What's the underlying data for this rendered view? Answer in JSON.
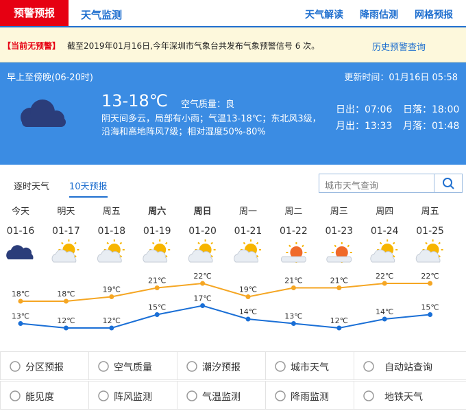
{
  "nav": {
    "tabs": [
      "预警预报",
      "天气监测"
    ],
    "links": [
      "天气解读",
      "降雨估测",
      "网格预报"
    ]
  },
  "alert": {
    "status": "【当前无预警】",
    "message": "截至2019年01月16日,今年深圳市气象台共发布气象预警信号 6 次。",
    "link": "历史预警查询"
  },
  "today": {
    "period": "早上至傍晚(06-20时)",
    "update": "更新时间：01月16日 05:58",
    "temp": "13-18℃",
    "air": "空气质量：良",
    "description": "阴天间多云，局部有小雨；气温13-18℃；东北风3级，沿海和高地阵风7级；相对湿度50%-80%",
    "sun": [
      [
        "日出：07:06",
        "日落：18:00"
      ],
      [
        "月出：13:33",
        "月落：01:48"
      ]
    ]
  },
  "tabs": [
    "逐时天气",
    "10天预报"
  ],
  "search_placeholder": "城市天气查询",
  "forecast": {
    "type": "line",
    "categories": [
      "今天",
      "明天",
      "周五",
      "周六",
      "周日",
      "周一",
      "周二",
      "周三",
      "周四",
      "周五"
    ],
    "dates": [
      "01-16",
      "01-17",
      "01-18",
      "01-19",
      "01-20",
      "01-21",
      "01-22",
      "01-23",
      "01-24",
      "01-25"
    ],
    "high": {
      "color": "#f5a623",
      "values": [
        18,
        18,
        19,
        21,
        22,
        19,
        21,
        21,
        22,
        22
      ],
      "value_labels": [
        "18℃",
        "18℃",
        "19℃",
        "21℃",
        "22℃",
        "19℃",
        "21℃",
        "21℃",
        "22℃",
        "22℃"
      ]
    },
    "low": {
      "color": "#1a6fd6",
      "values": [
        13,
        12,
        12,
        15,
        17,
        14,
        13,
        12,
        14,
        15
      ],
      "value_labels": [
        "13℃",
        "12℃",
        "12℃",
        "15℃",
        "17℃",
        "14℃",
        "13℃",
        "12℃",
        "14℃",
        "15℃"
      ]
    }
  },
  "services": [
    "分区预报",
    "空气质量",
    "潮汐预报",
    "城市天气",
    "自动站查询",
    "能见度",
    "阵风监测",
    "气温监测",
    "降雨监测",
    "地铁天气"
  ]
}
